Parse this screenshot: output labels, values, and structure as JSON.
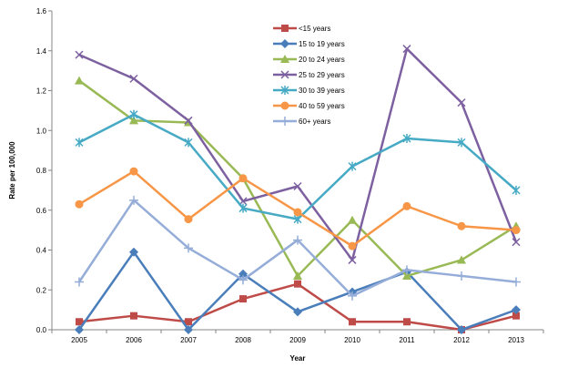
{
  "chart_data": {
    "type": "line",
    "title": "",
    "xlabel": "Year",
    "ylabel": "Rate per 100,000",
    "ylim": [
      0,
      1.6
    ],
    "yticks": [
      "0.0",
      "0.2",
      "0.4",
      "0.6",
      "0.8",
      "1.0",
      "1.2",
      "1.4",
      "1.6"
    ],
    "x": [
      "2005",
      "2006",
      "2007",
      "2008",
      "2009",
      "2010",
      "2011",
      "2012",
      "2013"
    ],
    "grid": false,
    "legend_position": "top-center",
    "series": [
      {
        "name": "<15 years",
        "color": "#BE4B48",
        "marker": "square",
        "values": [
          0.04,
          0.07,
          0.04,
          0.155,
          0.23,
          0.04,
          0.04,
          0.0,
          0.07
        ]
      },
      {
        "name": "15 to 19 years",
        "color": "#4A7EBB",
        "marker": "diamond",
        "values": [
          0.0,
          0.39,
          0.0,
          0.28,
          0.09,
          0.19,
          0.29,
          0.0,
          0.1
        ]
      },
      {
        "name": "20 to 24 years",
        "color": "#98B954",
        "marker": "triangle",
        "values": [
          1.25,
          1.05,
          1.04,
          0.76,
          0.27,
          0.55,
          0.27,
          0.35,
          0.52
        ]
      },
      {
        "name": "25 to 29 years",
        "color": "#7D60A0",
        "marker": "x",
        "values": [
          1.38,
          1.26,
          1.05,
          0.645,
          0.72,
          0.35,
          1.41,
          1.14,
          0.44
        ]
      },
      {
        "name": "30 to 39 years",
        "color": "#46AAC5",
        "marker": "asterisk",
        "values": [
          0.94,
          1.08,
          0.94,
          0.61,
          0.555,
          0.82,
          0.96,
          0.94,
          0.7
        ]
      },
      {
        "name": "40 to 59 years",
        "color": "#F79646",
        "marker": "circle",
        "values": [
          0.63,
          0.795,
          0.555,
          0.76,
          0.59,
          0.42,
          0.62,
          0.52,
          0.5
        ]
      },
      {
        "name": "60+ years",
        "color": "#95ADD8",
        "marker": "plus",
        "values": [
          0.24,
          0.65,
          0.41,
          0.25,
          0.45,
          0.17,
          0.3,
          0.27,
          0.24
        ]
      }
    ]
  }
}
